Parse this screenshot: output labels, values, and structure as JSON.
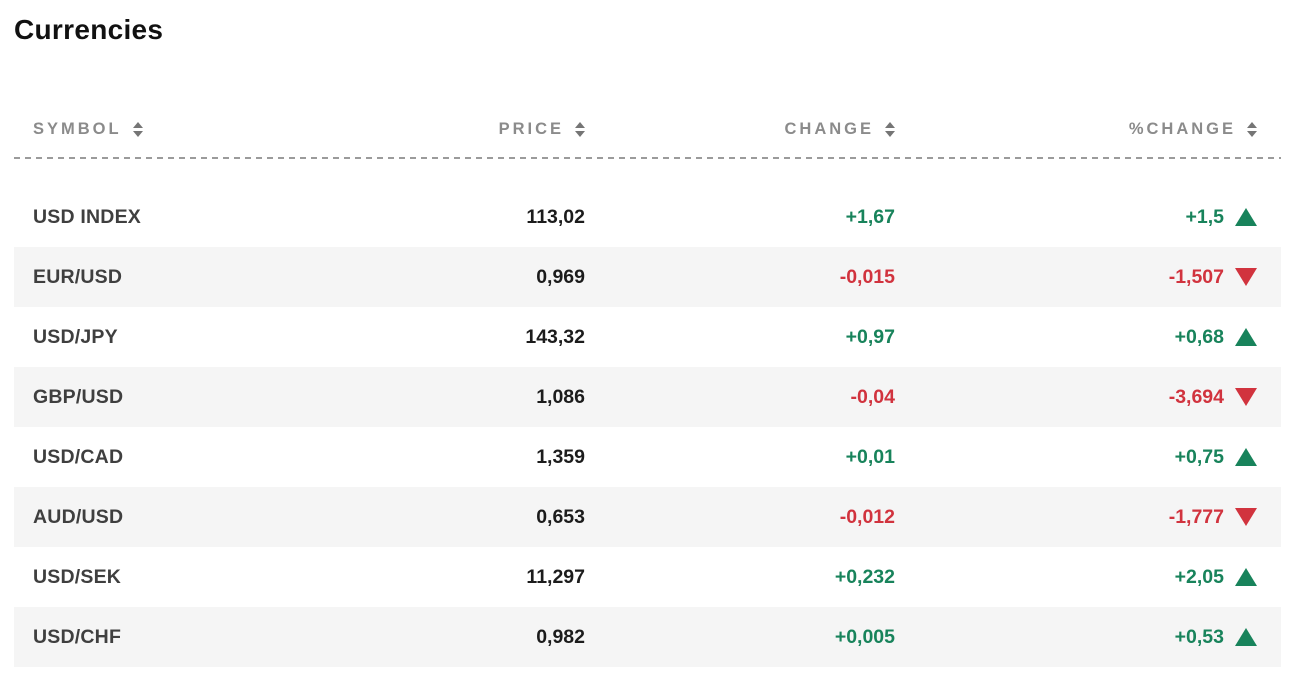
{
  "title": "Currencies",
  "colors": {
    "positive": "#18835b",
    "negative": "#d1333e",
    "row_alt_bg": "#f5f5f5",
    "header_text": "#8b8b8b",
    "symbol_text": "#3f3f3f",
    "price_text": "#1c1c1c"
  },
  "table": {
    "columns": [
      "SYMBOL",
      "PRICE",
      "CHANGE",
      "%CHANGE"
    ],
    "rows": [
      {
        "symbol": "USD INDEX",
        "price": "113,02",
        "change": "+1,67",
        "pct_change": "+1,5",
        "direction": "up"
      },
      {
        "symbol": "EUR/USD",
        "price": "0,969",
        "change": "-0,015",
        "pct_change": "-1,507",
        "direction": "down"
      },
      {
        "symbol": "USD/JPY",
        "price": "143,32",
        "change": "+0,97",
        "pct_change": "+0,68",
        "direction": "up"
      },
      {
        "symbol": "GBP/USD",
        "price": "1,086",
        "change": "-0,04",
        "pct_change": "-3,694",
        "direction": "down"
      },
      {
        "symbol": "USD/CAD",
        "price": "1,359",
        "change": "+0,01",
        "pct_change": "+0,75",
        "direction": "up"
      },
      {
        "symbol": "AUD/USD",
        "price": "0,653",
        "change": "-0,012",
        "pct_change": "-1,777",
        "direction": "down"
      },
      {
        "symbol": "USD/SEK",
        "price": "11,297",
        "change": "+0,232",
        "pct_change": "+2,05",
        "direction": "up"
      },
      {
        "symbol": "USD/CHF",
        "price": "0,982",
        "change": "+0,005",
        "pct_change": "+0,53",
        "direction": "up"
      }
    ]
  }
}
